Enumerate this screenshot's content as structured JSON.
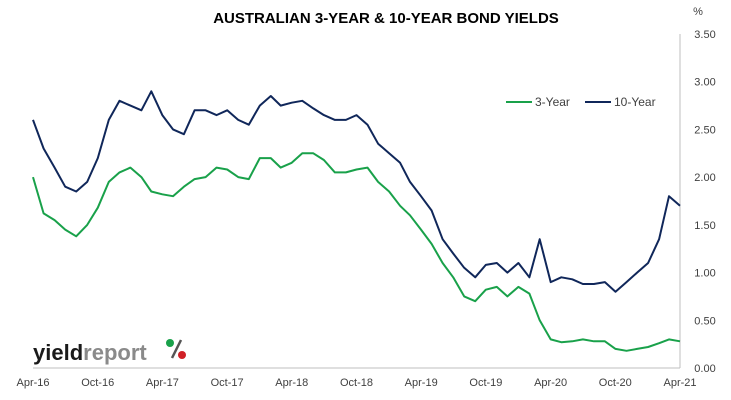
{
  "chart_data": {
    "type": "line",
    "title": "AUSTRALIAN 3-YEAR & 10-YEAR BOND YIELDS",
    "y_unit": "%",
    "ylim": [
      0,
      3.5
    ],
    "y_ticks": [
      "0.00",
      "0.50",
      "1.00",
      "1.50",
      "2.00",
      "2.50",
      "3.00",
      "3.50"
    ],
    "x_ticks": [
      "Apr-16",
      "Oct-16",
      "Apr-17",
      "Oct-17",
      "Apr-18",
      "Oct-18",
      "Apr-19",
      "Oct-19",
      "Apr-20",
      "Oct-20",
      "Apr-21"
    ],
    "grid": false,
    "legend_position": "top-right",
    "series": [
      {
        "name": "3-Year",
        "color": "#19a14a",
        "x": [
          "2016-04",
          "2016-05",
          "2016-06",
          "2016-07",
          "2016-08",
          "2016-09",
          "2016-10",
          "2016-11",
          "2016-12",
          "2017-01",
          "2017-02",
          "2017-03",
          "2017-04",
          "2017-05",
          "2017-06",
          "2017-07",
          "2017-08",
          "2017-09",
          "2017-10",
          "2017-11",
          "2017-12",
          "2018-01",
          "2018-02",
          "2018-03",
          "2018-04",
          "2018-05",
          "2018-06",
          "2018-07",
          "2018-08",
          "2018-09",
          "2018-10",
          "2018-11",
          "2018-12",
          "2019-01",
          "2019-02",
          "2019-03",
          "2019-04",
          "2019-05",
          "2019-06",
          "2019-07",
          "2019-08",
          "2019-09",
          "2019-10",
          "2019-11",
          "2019-12",
          "2020-01",
          "2020-02",
          "2020-03",
          "2020-04",
          "2020-05",
          "2020-06",
          "2020-07",
          "2020-08",
          "2020-09",
          "2020-10",
          "2020-11",
          "2020-12",
          "2021-01",
          "2021-02",
          "2021-03",
          "2021-04"
        ],
        "values": [
          2.0,
          1.62,
          1.55,
          1.45,
          1.38,
          1.5,
          1.68,
          1.95,
          2.05,
          2.1,
          2.0,
          1.85,
          1.82,
          1.8,
          1.9,
          1.98,
          2.0,
          2.1,
          2.08,
          2.0,
          1.98,
          2.2,
          2.2,
          2.1,
          2.15,
          2.25,
          2.25,
          2.18,
          2.05,
          2.05,
          2.08,
          2.1,
          1.95,
          1.85,
          1.7,
          1.6,
          1.45,
          1.3,
          1.1,
          0.95,
          0.75,
          0.7,
          0.82,
          0.85,
          0.75,
          0.85,
          0.78,
          0.5,
          0.3,
          0.27,
          0.28,
          0.3,
          0.28,
          0.28,
          0.2,
          0.18,
          0.2,
          0.22,
          0.26,
          0.3,
          0.28
        ]
      },
      {
        "name": "10-Year",
        "color": "#10275a",
        "x": [
          "2016-04",
          "2016-05",
          "2016-06",
          "2016-07",
          "2016-08",
          "2016-09",
          "2016-10",
          "2016-11",
          "2016-12",
          "2017-01",
          "2017-02",
          "2017-03",
          "2017-04",
          "2017-05",
          "2017-06",
          "2017-07",
          "2017-08",
          "2017-09",
          "2017-10",
          "2017-11",
          "2017-12",
          "2018-01",
          "2018-02",
          "2018-03",
          "2018-04",
          "2018-05",
          "2018-06",
          "2018-07",
          "2018-08",
          "2018-09",
          "2018-10",
          "2018-11",
          "2018-12",
          "2019-01",
          "2019-02",
          "2019-03",
          "2019-04",
          "2019-05",
          "2019-06",
          "2019-07",
          "2019-08",
          "2019-09",
          "2019-10",
          "2019-11",
          "2019-12",
          "2020-01",
          "2020-02",
          "2020-03",
          "2020-04",
          "2020-05",
          "2020-06",
          "2020-07",
          "2020-08",
          "2020-09",
          "2020-10",
          "2020-11",
          "2020-12",
          "2021-01",
          "2021-02",
          "2021-03",
          "2021-04"
        ],
        "values": [
          2.6,
          2.3,
          2.1,
          1.9,
          1.85,
          1.95,
          2.2,
          2.6,
          2.8,
          2.75,
          2.7,
          2.9,
          2.65,
          2.5,
          2.45,
          2.7,
          2.7,
          2.65,
          2.7,
          2.6,
          2.55,
          2.75,
          2.85,
          2.75,
          2.78,
          2.8,
          2.72,
          2.65,
          2.6,
          2.6,
          2.65,
          2.55,
          2.35,
          2.25,
          2.15,
          1.95,
          1.8,
          1.65,
          1.35,
          1.2,
          1.05,
          0.95,
          1.08,
          1.1,
          1.0,
          1.1,
          0.95,
          1.35,
          0.9,
          0.95,
          0.93,
          0.88,
          0.88,
          0.9,
          0.8,
          0.9,
          1.0,
          1.1,
          1.35,
          1.8,
          1.7
        ]
      }
    ]
  },
  "logo": {
    "word1": "yield",
    "word2": "report",
    "symbol": "%"
  }
}
